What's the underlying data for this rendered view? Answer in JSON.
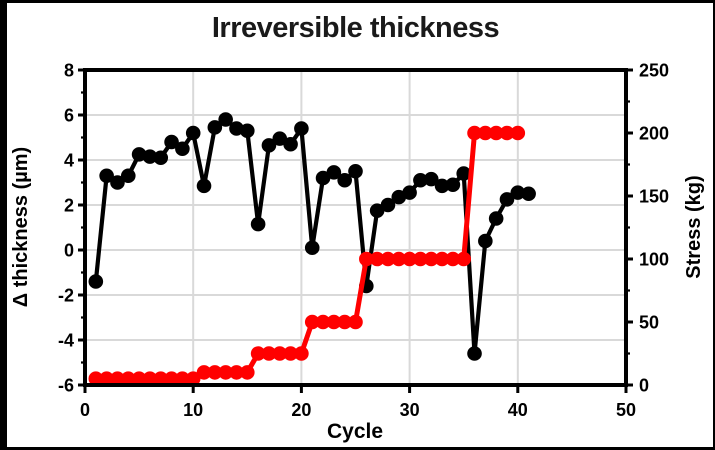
{
  "chart_data": {
    "type": "line",
    "title": "Irreversible thickness",
    "xlabel": "Cycle",
    "ylabel_left": "Δ thickness (µm)",
    "ylabel_right": "Stress (kg)",
    "x_range": [
      0,
      50
    ],
    "x_major_ticks": [
      0,
      10,
      20,
      30,
      40,
      50
    ],
    "y_left_range": [
      -6,
      8
    ],
    "y_left_major_ticks": [
      8,
      6,
      4,
      2,
      0,
      -2,
      -4,
      -6
    ],
    "y_left_minor_ticks": [
      7,
      5,
      3,
      1,
      -1,
      -3,
      -5
    ],
    "y_right_range": [
      0,
      250
    ],
    "y_right_major_ticks": [
      250,
      200,
      150,
      100,
      50,
      0
    ],
    "y_right_minor_ticks": [
      225,
      175,
      125,
      75,
      25
    ],
    "grid": true,
    "legend": "none",
    "series": [
      {
        "name": "Delta thickness",
        "axis": "left",
        "color": "#000000",
        "marker": "circle",
        "x": [
          1,
          2,
          3,
          4,
          5,
          6,
          7,
          8,
          9,
          10,
          11,
          12,
          13,
          14,
          15,
          16,
          17,
          18,
          19,
          20,
          21,
          22,
          23,
          24,
          25,
          26,
          27,
          28,
          29,
          30,
          31,
          32,
          33,
          34,
          35,
          36,
          37,
          38,
          39,
          40,
          41
        ],
        "values": [
          -1.4,
          3.3,
          3.0,
          3.3,
          4.25,
          4.15,
          4.1,
          4.8,
          4.5,
          5.2,
          2.85,
          5.45,
          5.8,
          5.4,
          5.3,
          1.15,
          4.65,
          4.95,
          4.7,
          5.4,
          0.1,
          3.2,
          3.45,
          3.1,
          3.5,
          -1.6,
          1.75,
          2.0,
          2.35,
          2.55,
          3.1,
          3.15,
          2.85,
          2.9,
          3.4,
          -4.6,
          0.4,
          1.4,
          2.25,
          2.55,
          2.5
        ]
      },
      {
        "name": "Stress",
        "axis": "right",
        "color": "#ff0000",
        "marker": "circle",
        "x": [
          1,
          2,
          3,
          4,
          5,
          6,
          7,
          8,
          9,
          10,
          11,
          12,
          13,
          14,
          15,
          16,
          17,
          18,
          19,
          20,
          21,
          22,
          23,
          24,
          25,
          26,
          27,
          28,
          29,
          30,
          31,
          32,
          33,
          34,
          35,
          36,
          37,
          38,
          39,
          40
        ],
        "values": [
          5,
          5,
          5,
          5,
          5,
          5,
          5,
          5,
          5,
          5,
          10,
          10,
          10,
          10,
          10,
          25,
          25,
          25,
          25,
          25,
          50,
          50,
          50,
          50,
          50,
          100,
          100,
          100,
          100,
          100,
          100,
          100,
          100,
          100,
          100,
          200,
          200,
          200,
          200,
          200
        ]
      }
    ]
  },
  "colors": {
    "series_thickness": "#000000",
    "series_stress": "#ff0000",
    "gridline": "#d9d9d9",
    "axis": "#000000",
    "background": "#ffffff"
  }
}
